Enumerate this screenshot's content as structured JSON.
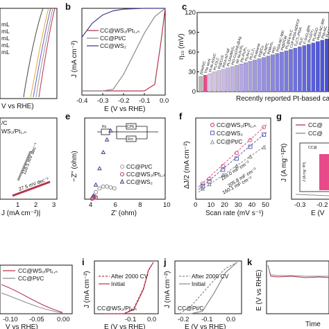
{
  "colors": {
    "wspt": "#b5344d",
    "ptc": "#8a8a8a",
    "ws2": "#3d3b8e",
    "pink": "#d94d7e",
    "blue": "#5560b0",
    "grey_light": "#c8c8c8",
    "bar_grey": "#bbbbbb",
    "bar_pink": "#e84a8a"
  },
  "panel_a": {
    "legend_items": [
      "mL",
      "mL",
      "mL",
      "mL",
      "mL"
    ],
    "xlabel": "V vs RHE)"
  },
  "panel_b": {
    "letter": "b",
    "ylabel": "J (mA cm⁻²)",
    "xlabel": "E (V vs RHE)",
    "xticks": [
      "-0.4",
      "-0.3",
      "-0.2",
      "-0.1",
      "0.0"
    ],
    "legend": [
      "CC@WS₂/Pt₁,ₙ",
      "CC@Pt/C",
      "CC@WS₂"
    ]
  },
  "panel_c": {
    "letter": "c",
    "ylabel": "η₁₀ (mV)",
    "yticks": [
      "0",
      "30",
      "60",
      "90",
      "120"
    ],
    "xlabel": "Recently reported Pt-based catalys",
    "bar_labels": [
      "20%Pt/C",
      "This work",
      "Pt-Ni-ASs/C",
      "Pt₁/OLC",
      "Pt@CoS",
      "PtSA-NT-NF",
      "Pt-SAs/MoS₂",
      "PtO-Co(OH)₂@Ag",
      "NF-Ni₃N-Pt₁",
      "Ptc-Pt₁Pr₁",
      "Pt₁/N-C",
      "Pt₁C₃T₃",
      "Pt-Mxene",
      "Pt@Cu",
      "Pt₁/NPC",
      "Pt/MoS₂",
      "PtSi",
      "PtSA-NC-900",
      "Pt@PCM",
      "Pt₁@Fe-N-C",
      "CoP-PtSA-NDPCF",
      "Ti₂CT₂-PtSA",
      "Pt₁/C",
      "F-SnO₂@Pt",
      "Pt-GDY₂",
      "Pt₁/RGO",
      "PtSA-NC-900",
      "Pt/p-NC",
      "Pt-CoNiS"
    ]
  },
  "panel_d": {
    "legend": [
      "/C",
      "WS₂/Pt₁,ₙ"
    ],
    "slopes": [
      "118.5 mV dec⁻¹",
      "27.5 mV dec⁻¹"
    ],
    "xlabel": "J (mA cm⁻²)|",
    "xticks": [
      "1",
      "2",
      "3"
    ]
  },
  "panel_e": {
    "letter": "e",
    "ylabel": "−Z'' (ohm)",
    "xlabel": "Z' (ohm)",
    "xticks": [
      "4",
      "6",
      "8",
      "10"
    ],
    "yticks": [
      "0",
      "2",
      "4",
      "6",
      "8"
    ],
    "legend": [
      "CC@Pt/C",
      "CC@WS₂/Pt₁,ₙ",
      "CC@WS₂"
    ],
    "circuit": [
      "Rs",
      "CPE",
      "Rct"
    ]
  },
  "panel_f": {
    "letter": "f",
    "ylabel": "ΔJ/2 (mA cm⁻²)",
    "xlabel": "Scan rate (mV s⁻¹)",
    "xticks": [
      "0",
      "10",
      "20",
      "30",
      "40",
      "50"
    ],
    "yticks": [
      "0.0",
      "0.5",
      "1.0",
      "1.5",
      "2.0"
    ],
    "legend": [
      "CC@WS₂/Pt₁,ₙ",
      "CC@WS₂",
      "CC@Pt/C"
    ],
    "annotations": [
      "228.0 mF cm⁻²",
      "205.8 mF cm⁻²",
      "160.1 mF cm⁻²"
    ]
  },
  "panel_g": {
    "letter": "g",
    "ylabel": "J (A mg⁻¹Pt)",
    "xlabel": "E (V",
    "xticks": [
      "-0.3",
      "-0.2"
    ],
    "legend": [
      "CC@",
      "CC@"
    ],
    "inset_label": "CC@",
    "inset_ylabel": "J (A mg⁻¹Pt)"
  },
  "panel_h": {
    "legend": [
      "CC@WS₂/Pt₁,ₙ",
      "CC@Pt/C"
    ],
    "xlabel": "V vs RHE)",
    "xticks": [
      "-0.10",
      "-0.05",
      "0.00"
    ]
  },
  "panel_i": {
    "letter": "i",
    "ylabel": "J (mA cm⁻²)",
    "xlabel": "E (V vs RHE)",
    "xticks": [
      "-0.1",
      "0.0"
    ],
    "legend": [
      "After 2000 CV",
      "Initial"
    ],
    "sample": "CC@WS₂/Pt₁,ₙ"
  },
  "panel_j": {
    "letter": "j",
    "ylabel": "J (mA cm⁻²)",
    "xlabel": "E (V vs RHE)",
    "xticks": [
      "-0.2",
      "-0.1",
      "0.0"
    ],
    "legend": [
      "After 2000 CV",
      "Initial"
    ],
    "sample": "CC@Pt/C"
  },
  "panel_k": {
    "letter": "k",
    "ylabel": "E (V vs RHE)",
    "xlabel": "Time"
  },
  "chart_data": [
    {
      "type": "line",
      "panel": "b",
      "xlabel": "E (V vs RHE)",
      "ylabel": "J (mA cm⁻²)",
      "xlim": [
        -0.4,
        0.0
      ],
      "series": [
        {
          "name": "CC@WS₂/Pt₁,ₙ",
          "x": [
            -0.4,
            -0.3,
            -0.2,
            -0.1,
            -0.05,
            -0.02,
            0.0
          ],
          "y": [
            -100,
            -100,
            -100,
            -100,
            -92,
            -40,
            0
          ]
        },
        {
          "name": "CC@Pt/C",
          "x": [
            -0.4,
            -0.3,
            -0.25,
            -0.2,
            -0.15,
            -0.1,
            -0.05,
            0.0
          ],
          "y": [
            -100,
            -100,
            -98,
            -80,
            -55,
            -30,
            -10,
            0
          ]
        },
        {
          "name": "CC@WS₂",
          "x": [
            -0.4,
            -0.35,
            -0.3,
            -0.25,
            -0.2,
            -0.1,
            0.0
          ],
          "y": [
            -35,
            -18,
            -8,
            -3,
            -1,
            0,
            0
          ]
        }
      ]
    },
    {
      "type": "bar",
      "panel": "c",
      "ylabel": "η₁₀ (mV)",
      "ylim": [
        0,
        120
      ],
      "categories": [
        "20%Pt/C",
        "This work",
        "Pt-Ni-ASs/C",
        "Pt₁/OLC",
        "Pt@CoS",
        "PtSA-NT-NF",
        "Pt-SAs/MoS₂",
        "PtO-Co(OH)₂@Ag",
        "NF-Ni₃N-Pt₁",
        "Ptc-Pt₁Pr₁",
        "Pt₁/N-C",
        "Pt₁C₃T₃",
        "Pt-Mxene",
        "Pt@Cu",
        "Pt₁/NPC",
        "Pt/MoS₂",
        "PtSi",
        "PtSA-NC-900",
        "Pt@PCM",
        "Pt₁@Fe-N-C",
        "CoP-PtSA-NDPCF",
        "Ti₂CT₂-PtSA",
        "Pt₁/C",
        "F-SnO₂@Pt",
        "Pt-GDY₂",
        "Pt₁/RGO",
        "PtSA-NC-900",
        "Pt/p-NC",
        "Pt-CoNiS"
      ],
      "values": [
        23,
        25,
        27,
        30,
        32,
        34,
        36,
        38,
        40,
        42,
        44,
        46,
        48,
        50,
        52,
        54,
        56,
        58,
        60,
        62,
        64,
        66,
        68,
        70,
        72,
        74,
        76,
        78,
        80
      ]
    },
    {
      "type": "scatter",
      "panel": "e",
      "xlabel": "Z' (ohm)",
      "ylabel": "−Z'' (ohm)",
      "xlim": [
        3.5,
        10
      ],
      "ylim": [
        0,
        9
      ],
      "series": [
        {
          "name": "CC@Pt/C",
          "x": [
            4.2,
            4.4,
            4.7,
            5.0,
            5.3,
            5.6,
            5.9
          ],
          "y": [
            0.2,
            0.8,
            1.2,
            1.4,
            1.4,
            1.3,
            1.2
          ]
        },
        {
          "name": "CC@WS₂/Pt₁,ₙ",
          "x": [
            4.1,
            4.2,
            4.3,
            4.4
          ],
          "y": [
            0.05,
            0.2,
            0.3,
            0.2
          ]
        },
        {
          "name": "CC@WS₂",
          "x": [
            4.2,
            4.4,
            4.7,
            5.0,
            5.3,
            5.6
          ],
          "y": [
            0.4,
            1.6,
            3.4,
            5.2,
            6.6,
            7.6
          ]
        }
      ]
    },
    {
      "type": "scatter",
      "panel": "f",
      "xlabel": "Scan rate (mV s⁻¹)",
      "ylabel": "ΔJ/2 (mA cm⁻²)",
      "xlim": [
        0,
        55
      ],
      "ylim": [
        0,
        2.2
      ],
      "series": [
        {
          "name": "CC@WS₂/Pt₁,ₙ",
          "x": [
            5,
            10,
            20,
            30,
            40,
            50
          ],
          "y": [
            0.42,
            0.55,
            0.9,
            1.25,
            1.6,
            1.95
          ]
        },
        {
          "name": "CC@WS₂",
          "x": [
            5,
            10,
            20,
            30,
            40,
            50
          ],
          "y": [
            0.35,
            0.48,
            0.8,
            1.1,
            1.42,
            1.75
          ]
        },
        {
          "name": "CC@Pt/C",
          "x": [
            5,
            10,
            20,
            30,
            40,
            50
          ],
          "y": [
            0.28,
            0.4,
            0.65,
            0.9,
            1.15,
            1.4
          ]
        }
      ]
    },
    {
      "type": "line",
      "panel": "i",
      "xlabel": "E (V vs RHE)",
      "ylabel": "J (mA cm⁻²)",
      "series": [
        {
          "name": "After 2000 CV",
          "x": [
            -0.1,
            -0.06,
            -0.04,
            -0.02,
            -0.01,
            0.0
          ],
          "y": [
            -100,
            -100,
            -90,
            -50,
            -15,
            0
          ]
        },
        {
          "name": "Initial",
          "x": [
            -0.1,
            -0.06,
            -0.04,
            -0.02,
            -0.01,
            0.0
          ],
          "y": [
            -100,
            -100,
            -92,
            -52,
            -16,
            0
          ]
        }
      ]
    },
    {
      "type": "line",
      "panel": "j",
      "xlabel": "E (V vs RHE)",
      "ylabel": "J (mA cm⁻²)",
      "series": [
        {
          "name": "After 2000 CV",
          "x": [
            -0.25,
            -0.2,
            -0.15,
            -0.1,
            -0.05,
            0.0
          ],
          "y": [
            -100,
            -85,
            -60,
            -35,
            -12,
            0
          ]
        },
        {
          "name": "Initial",
          "x": [
            -0.25,
            -0.2,
            -0.15,
            -0.1,
            -0.05,
            0.0
          ],
          "y": [
            -100,
            -100,
            -95,
            -60,
            -20,
            0
          ]
        }
      ]
    }
  ]
}
